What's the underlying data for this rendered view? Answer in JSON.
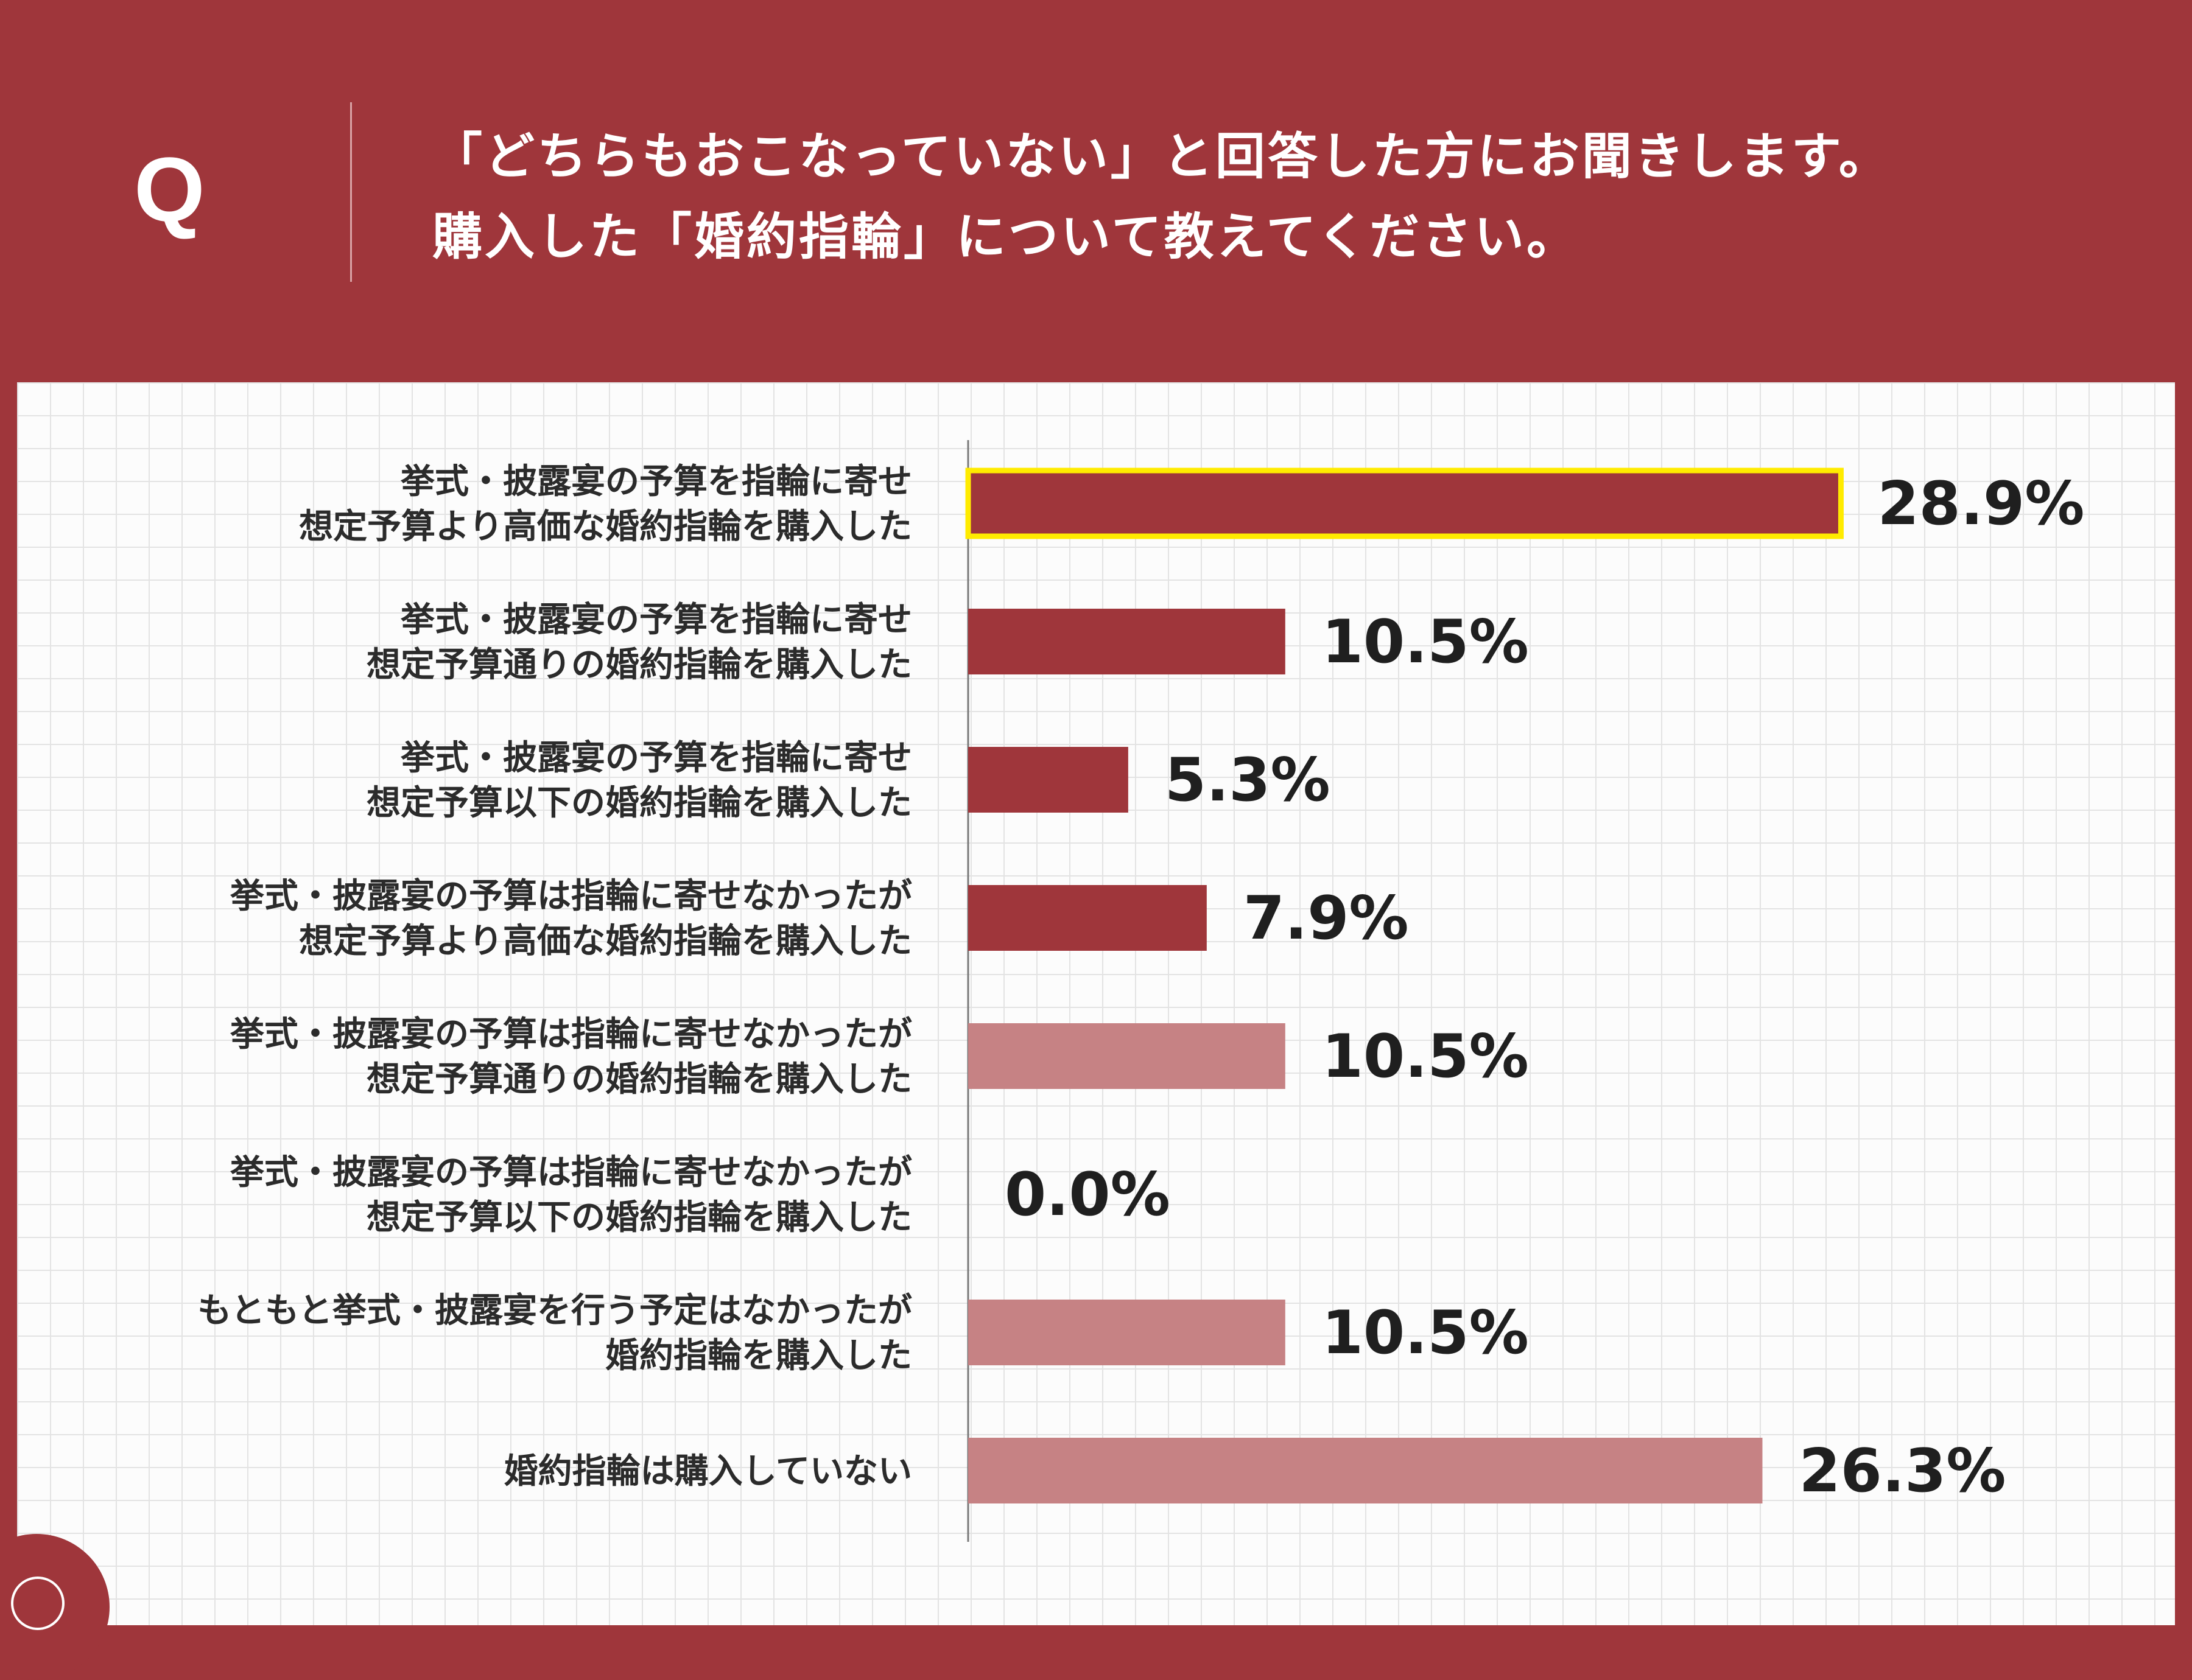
{
  "header": {
    "q_mark": "Q",
    "question_line_1": "「どちらもおこなっていない」と回答した方にお聞きします。",
    "question_line_2": "購入した「婚約指輪」について教えてください。"
  },
  "colors": {
    "background": "#9f363b",
    "bar_dark": "#9f363b",
    "bar_light": "#c68284",
    "highlight": "#ffeb00"
  },
  "chart_data": {
    "type": "bar",
    "orientation": "horizontal",
    "title": "",
    "xlabel": "",
    "ylabel": "",
    "xlim": [
      0,
      35
    ],
    "grid": true,
    "categories": [
      [
        "挙式・披露宴の予算を指輪に寄せ",
        "想定予算より高価な婚約指輪を購入した"
      ],
      [
        "挙式・披露宴の予算を指輪に寄せ",
        "想定予算通りの婚約指輪を購入した"
      ],
      [
        "挙式・披露宴の予算を指輪に寄せ",
        "想定予算以下の婚約指輪を購入した"
      ],
      [
        "挙式・披露宴の予算は指輪に寄せなかったが",
        "想定予算より高価な婚約指輪を購入した"
      ],
      [
        "挙式・披露宴の予算は指輪に寄せなかったが",
        "想定予算通りの婚約指輪を購入した"
      ],
      [
        "挙式・披露宴の予算は指輪に寄せなかったが",
        "想定予算以下の婚約指輪を購入した"
      ],
      [
        "もともと挙式・披露宴を行う予定はなかったが",
        "婚約指輪を購入した"
      ],
      [
        "婚約指輪は購入していない"
      ]
    ],
    "values": [
      28.9,
      10.5,
      5.3,
      7.9,
      10.5,
      0.0,
      10.5,
      26.3
    ],
    "value_labels": [
      "28.9%",
      "10.5%",
      "5.3%",
      "7.9%",
      "10.5%",
      "0.0%",
      "10.5%",
      "26.3%"
    ],
    "bar_shades": [
      "dark",
      "dark",
      "dark",
      "dark",
      "light",
      "light",
      "light",
      "light"
    ],
    "highlighted_index": 0
  }
}
